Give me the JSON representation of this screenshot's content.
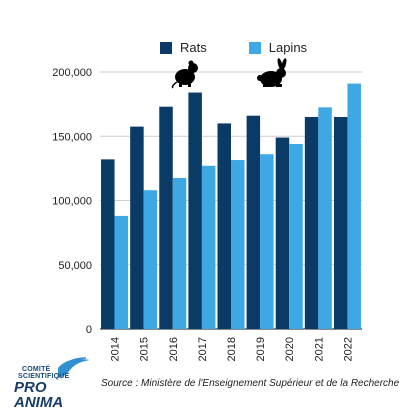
{
  "chart_data": {
    "type": "bar",
    "categories": [
      "2014",
      "2015",
      "2016",
      "2017",
      "2018",
      "2019",
      "2020",
      "2021",
      "2022"
    ],
    "series": [
      {
        "name": "Rats",
        "color": "#0a3a66",
        "values": [
          132000,
          157500,
          173000,
          184000,
          160000,
          166000,
          149000,
          165000,
          165000
        ]
      },
      {
        "name": "Lapins",
        "color": "#3ea8e5",
        "values": [
          88000,
          108000,
          117500,
          127000,
          131500,
          136000,
          144000,
          172500,
          191000
        ]
      }
    ],
    "ylim": [
      0,
      200000
    ],
    "yticks": [
      0,
      50000,
      100000,
      150000,
      200000
    ],
    "ytick_labels": [
      "0",
      "50,000",
      "100,000",
      "150,000",
      "200,000"
    ],
    "grid": true,
    "legend_position": "top"
  },
  "icons": [
    "rat-icon",
    "rabbit-icon"
  ],
  "source": "Source : Ministère de l'Enseignement Supérieur et de la Recherche",
  "logo": {
    "line1": "COMITÉ",
    "line2": "SCIENTIFIQUE",
    "line3": "PRO ANIMA"
  }
}
